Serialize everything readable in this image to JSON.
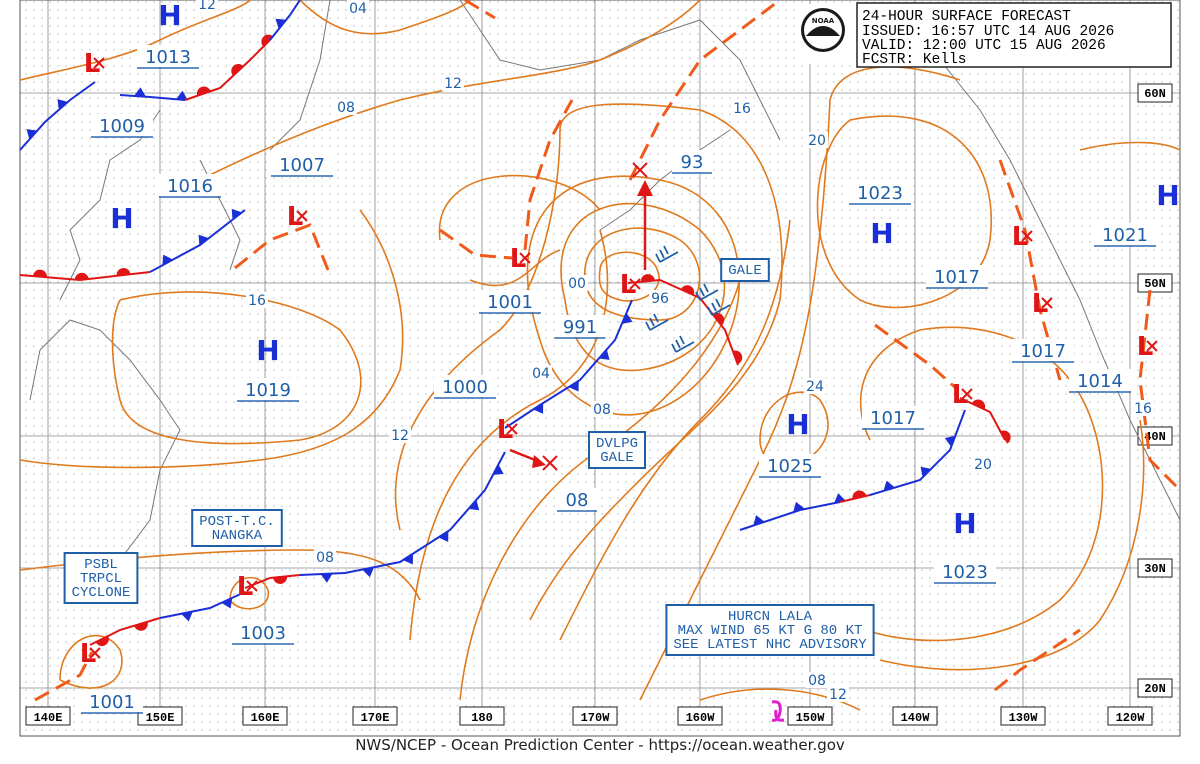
{
  "header": {
    "lines": [
      "24-HOUR SURFACE FORECAST",
      "ISSUED: 16:57 UTC 14 AUG 2026",
      "VALID:  12:00 UTC 15 AUG 2026",
      "FCSTR:  Kells"
    ]
  },
  "logo": "NOAA",
  "symbols": {
    "high": "H",
    "low": "L"
  },
  "center_pressures": [
    "1013",
    "1009",
    "1016",
    "1007",
    "1019",
    "1001",
    "991",
    "1000",
    "1023",
    "1017",
    "1017",
    "1017",
    "1025",
    "1021",
    "1014",
    "1023",
    "1003",
    "1001",
    "93",
    "08"
  ],
  "isobar_labels": [
    "12",
    "04",
    "08",
    "12",
    "16",
    "20",
    "16",
    "00",
    "96",
    "04",
    "08",
    "12",
    "24",
    "20",
    "16",
    "08",
    "08",
    "12"
  ],
  "boxes": [
    [
      "GALE"
    ],
    [
      "DVLPG",
      "GALE"
    ],
    [
      "POST-T.C.",
      "NANGKA"
    ],
    [
      "PSBL",
      "TRPCL",
      "CYCLONE"
    ],
    [
      "HURCN LALA",
      "MAX WIND 65 KT G 80 KT",
      "SEE LATEST NHC ADVISORY"
    ]
  ],
  "lat_labels": [
    "60N",
    "50N",
    "40N",
    "30N",
    "20N"
  ],
  "lon_labels": [
    "140E",
    "150E",
    "160E",
    "170E",
    "180",
    "170W",
    "160W",
    "150W",
    "140W",
    "130W",
    "120W"
  ],
  "footer": "NWS/NCEP - Ocean Prediction Center - https://ocean.weather.gov"
}
